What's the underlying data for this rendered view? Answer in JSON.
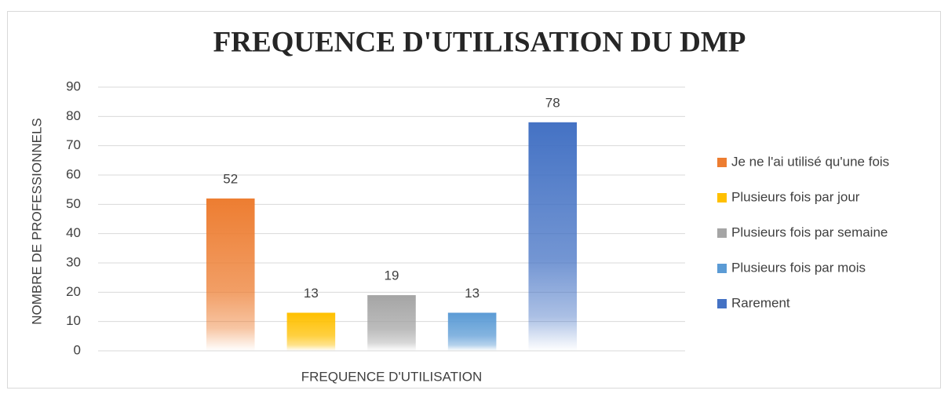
{
  "chart_data": {
    "type": "bar",
    "title": "FREQUENCE D'UTILISATION DU DMP",
    "x_label": "FREQUENCE D'UTILISATION",
    "y_label": "NOMBRE DE PROFESSIONNELS",
    "categories": [
      "FREQUENCE D'UTILISATION"
    ],
    "series": [
      {
        "name": "Je ne l'ai utilisé qu'une fois",
        "color": "#ed7d31",
        "values": [
          52
        ]
      },
      {
        "name": "Plusieurs fois par jour",
        "color": "#ffc000",
        "values": [
          13
        ]
      },
      {
        "name": "Plusieurs fois par semaine",
        "color": "#a5a5a5",
        "values": [
          19
        ]
      },
      {
        "name": "Plusieurs fois par mois",
        "color": "#5b9bd5",
        "values": [
          13
        ]
      },
      {
        "name": "Rarement",
        "color": "#4472c4",
        "values": [
          78
        ]
      }
    ],
    "ylim": [
      0,
      90
    ],
    "yticks": [
      0,
      10,
      20,
      30,
      40,
      50,
      60,
      70,
      80,
      90
    ],
    "grid": true,
    "legend": "right"
  }
}
